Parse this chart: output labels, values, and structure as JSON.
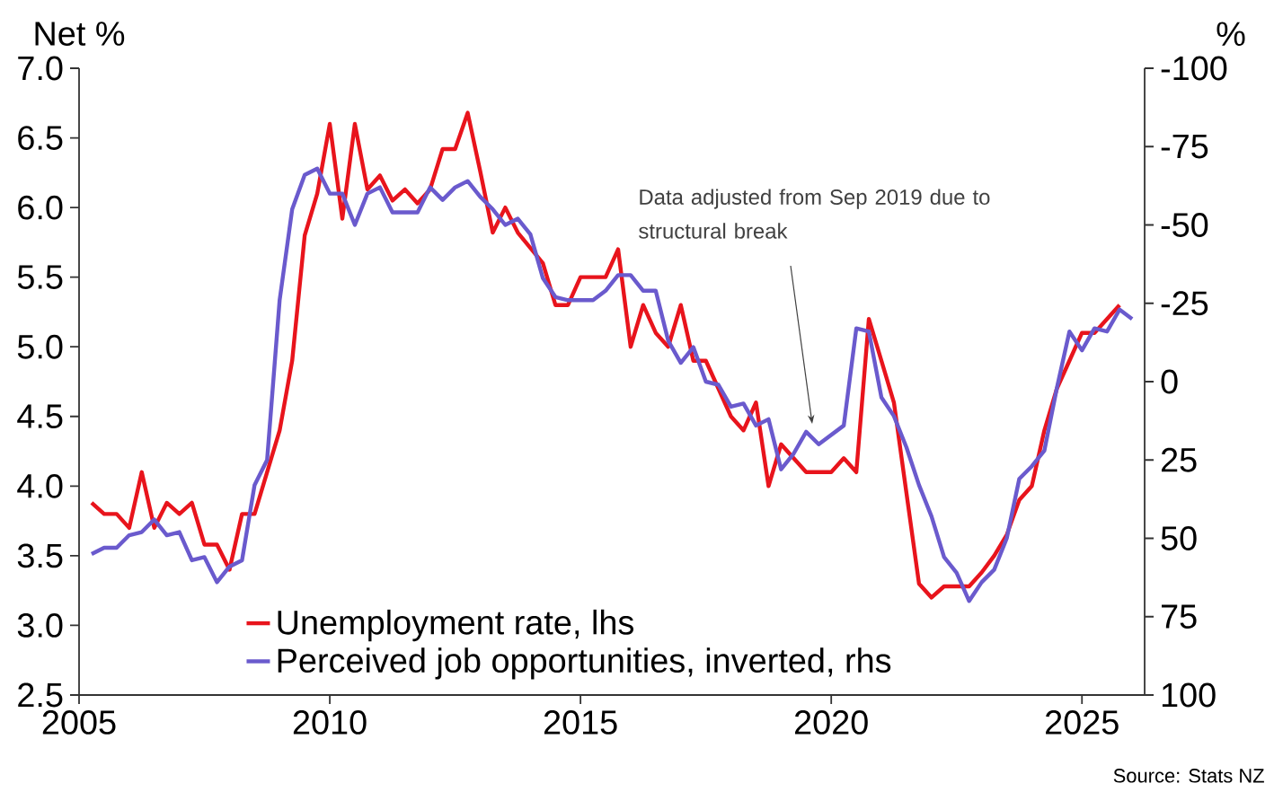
{
  "chart_data": {
    "type": "line",
    "ylabel": "Net %",
    "y2label": "%",
    "xlim": [
      2005,
      2026.25
    ],
    "xticks": [
      2005,
      2010,
      2015,
      2020,
      2025
    ],
    "ylim": [
      2.5,
      7.0
    ],
    "yticks": [
      2.5,
      {
        "value": 3,
        "label": "3.0"
      },
      3.5,
      {
        "value": 4,
        "label": "4.0"
      },
      4.5,
      {
        "value": 5,
        "label": "5.0"
      },
      5.5,
      {
        "value": 6,
        "label": "6.0"
      },
      6.5,
      {
        "value": 7,
        "label": "7.0"
      }
    ],
    "y2lim": [
      100,
      -100
    ],
    "y2ticks": [
      -100,
      -75,
      -50,
      -25,
      0,
      25,
      50,
      75,
      100
    ],
    "legend": "bottom left",
    "annotations": [
      "Data adjusted from Sep 2019 due to structural break",
      "Source: Stats NZ"
    ],
    "x": [
      2005.25,
      2005.5,
      2005.75,
      2006,
      2006.25,
      2006.5,
      2006.75,
      2007,
      2007.25,
      2007.5,
      2007.75,
      2008,
      2008.25,
      2008.5,
      2008.75,
      2009,
      2009.25,
      2009.5,
      2009.75,
      2010,
      2010.25,
      2010.5,
      2010.75,
      2011,
      2011.25,
      2011.5,
      2011.75,
      2012,
      2012.25,
      2012.5,
      2012.75,
      2013,
      2013.25,
      2013.5,
      2013.75,
      2014,
      2014.25,
      2014.5,
      2014.75,
      2015,
      2015.25,
      2015.5,
      2015.75,
      2016,
      2016.25,
      2016.5,
      2016.75,
      2017,
      2017.25,
      2017.5,
      2017.75,
      2018,
      2018.25,
      2018.5,
      2018.75,
      2019,
      2019.25,
      2019.5,
      2019.75,
      2020,
      2020.25,
      2020.5,
      2020.75,
      2021,
      2021.25,
      2021.5,
      2021.75,
      2022,
      2022.25,
      2022.5,
      2022.75,
      2023,
      2023.25,
      2023.5,
      2023.75,
      2024,
      2024.25,
      2024.5,
      2024.75,
      2025,
      2025.25,
      2025.5,
      2025.75,
      2026
    ],
    "series": [
      {
        "name": "Unemployment rate, lhs",
        "color": "#e8141c",
        "x": [
          2005.25,
          2005.5,
          2005.75,
          2006,
          2006.25,
          2006.5,
          2006.75,
          2007,
          2007.25,
          2007.5,
          2007.75,
          2008,
          2008.25,
          2008.5,
          2008.75,
          2009,
          2009.25,
          2009.5,
          2009.75,
          2010,
          2010.25,
          2010.5,
          2010.75,
          2011,
          2011.25,
          2011.5,
          2011.75,
          2012,
          2012.25,
          2012.5,
          2012.75,
          2013,
          2013.25,
          2013.5,
          2013.75,
          2014,
          2014.25,
          2014.5,
          2014.75,
          2015,
          2015.25,
          2015.5,
          2015.75,
          2016,
          2016.25,
          2016.5,
          2016.75,
          2017,
          2017.25,
          2017.5,
          2017.75,
          2018,
          2018.25,
          2018.5,
          2018.75,
          2019,
          2019.25,
          2019.5,
          2019.75,
          2020,
          2020.25,
          2020.5,
          2020.75,
          2021,
          2021.25,
          2021.5,
          2021.75,
          2022,
          2022.25,
          2022.5,
          2022.75,
          2023,
          2023.25,
          2023.5,
          2023.75,
          2024,
          2024.25,
          2024.5,
          2024.75,
          2025,
          2025.25,
          2025.5,
          2025.75
        ],
        "values": [
          3.88,
          3.8,
          3.8,
          3.7,
          4.1,
          3.7,
          3.88,
          3.8,
          3.88,
          3.58,
          3.58,
          3.4,
          3.8,
          3.8,
          4.1,
          4.4,
          4.9,
          5.8,
          6.1,
          6.6,
          5.92,
          6.6,
          6.13,
          6.23,
          6.05,
          6.13,
          6.03,
          6.13,
          6.42,
          6.42,
          6.68,
          6.26,
          5.82,
          6.0,
          5.82,
          5.71,
          5.6,
          5.3,
          5.3,
          5.5,
          5.5,
          5.5,
          5.7,
          5.0,
          5.3,
          5.1,
          5.0,
          5.3,
          4.9,
          4.9,
          4.7,
          4.5,
          4.4,
          4.6,
          4.0,
          4.3,
          4.2,
          4.1,
          4.1,
          4.1,
          4.2,
          4.1,
          5.2,
          4.9,
          4.6,
          3.95,
          3.3,
          3.2,
          3.28,
          3.28,
          3.28,
          3.38,
          3.5,
          3.65,
          3.9,
          4.0,
          4.4,
          4.7,
          4.9,
          5.1,
          5.1,
          5.2,
          5.3
        ]
      },
      {
        "name": "Perceived job opportunities, inverted, rhs",
        "axis": "y2",
        "color": "#6a5acd",
        "values": [
          55,
          53,
          53,
          49,
          48,
          44,
          49,
          48,
          57,
          56,
          64,
          59,
          57,
          33,
          25,
          -26,
          -55,
          -66,
          -68,
          -60,
          -60,
          -50,
          -60,
          -62,
          -54,
          -54,
          -54,
          -62,
          -58,
          -62,
          -64,
          -59,
          -55,
          -50,
          -52,
          -47,
          -33,
          -27,
          -26,
          -26,
          -26,
          -29,
          -34,
          -34,
          -29,
          -29,
          -13,
          -6,
          -11,
          0,
          1,
          8,
          7,
          14,
          12,
          28,
          23,
          16,
          20,
          17,
          14,
          -17,
          -16,
          5,
          11,
          21,
          33,
          43,
          56,
          61,
          70,
          64,
          60,
          50,
          31,
          27,
          22,
          2,
          -16,
          -10,
          -17,
          -16,
          -23,
          -20
        ]
      }
    ]
  }
}
